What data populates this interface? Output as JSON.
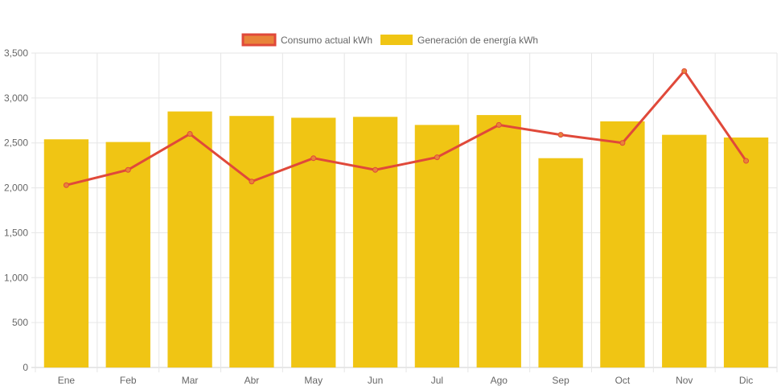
{
  "chart_data": {
    "type": "bar",
    "categories": [
      "Ene",
      "Feb",
      "Mar",
      "Abr",
      "May",
      "Jun",
      "Jul",
      "Ago",
      "Sep",
      "Oct",
      "Nov",
      "Dic"
    ],
    "series": [
      {
        "name": "Consumo actual kWh",
        "type": "line",
        "color": "#e0493a",
        "point_color": "#e8833a",
        "values": [
          2030,
          2200,
          2600,
          2070,
          2330,
          2200,
          2340,
          2700,
          2590,
          2500,
          3300,
          2300
        ]
      },
      {
        "name": "Generación de energía kWh",
        "type": "bar",
        "color": "#f0c514",
        "values": [
          2540,
          2510,
          2850,
          2800,
          2780,
          2790,
          2700,
          2810,
          2330,
          2740,
          2590,
          2560
        ]
      }
    ],
    "ylim": [
      0,
      3500
    ],
    "yticks": [
      0,
      500,
      1000,
      1500,
      2000,
      2500,
      3000,
      3500
    ],
    "ytick_labels": [
      "0",
      "500",
      "1,000",
      "1,500",
      "2,000",
      "2,500",
      "3,000",
      "3,500"
    ],
    "grid": true,
    "legend_position": "top-center"
  }
}
